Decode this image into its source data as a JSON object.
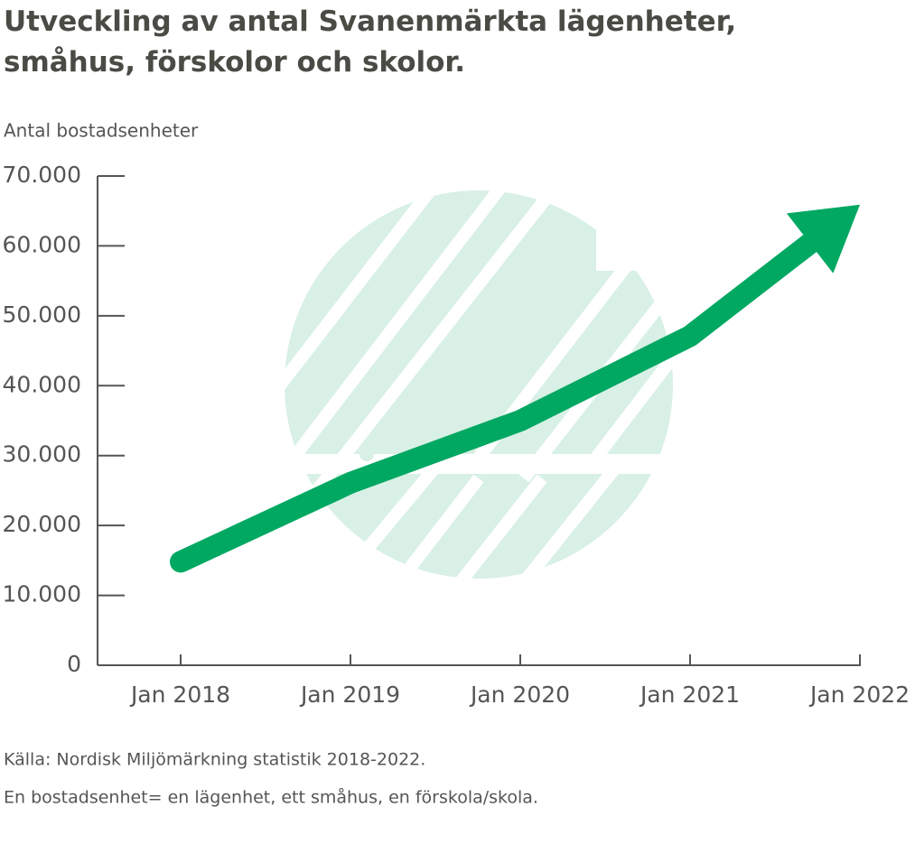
{
  "chart_data": {
    "type": "line",
    "title": "Utveckling av antal Svanenmärkta lägenheter, småhus, förskolor och skolor.",
    "y_label": "Antal bostadsenheter",
    "categories": [
      "Jan 2018",
      "Jan 2019",
      "Jan 2020",
      "Jan 2021",
      "Jan 2022"
    ],
    "series": [
      {
        "name": "Antal bostadsenheter",
        "color": "#00a862",
        "values": [
          14800,
          26100,
          35000,
          47100,
          65900
        ]
      }
    ],
    "ylim": [
      0,
      70000
    ],
    "yticks": [
      0,
      {
        "value": 10000,
        "label": "10.000"
      },
      {
        "value": 20000,
        "label": "20.000"
      },
      {
        "value": 30000,
        "label": "30.000"
      },
      {
        "value": 40000,
        "label": "40.000"
      },
      {
        "value": 50000,
        "label": "50.000"
      },
      {
        "value": 60000,
        "label": "60.000"
      },
      {
        "value": 70000,
        "label": "70.000"
      }
    ],
    "arrow_end": true,
    "notes": [
      "Källa: Nordisk Miljömärkning statistik 2018-2022.",
      "En bostadsenhet= en lägenhet, ett småhus, en förskola/skola."
    ]
  }
}
